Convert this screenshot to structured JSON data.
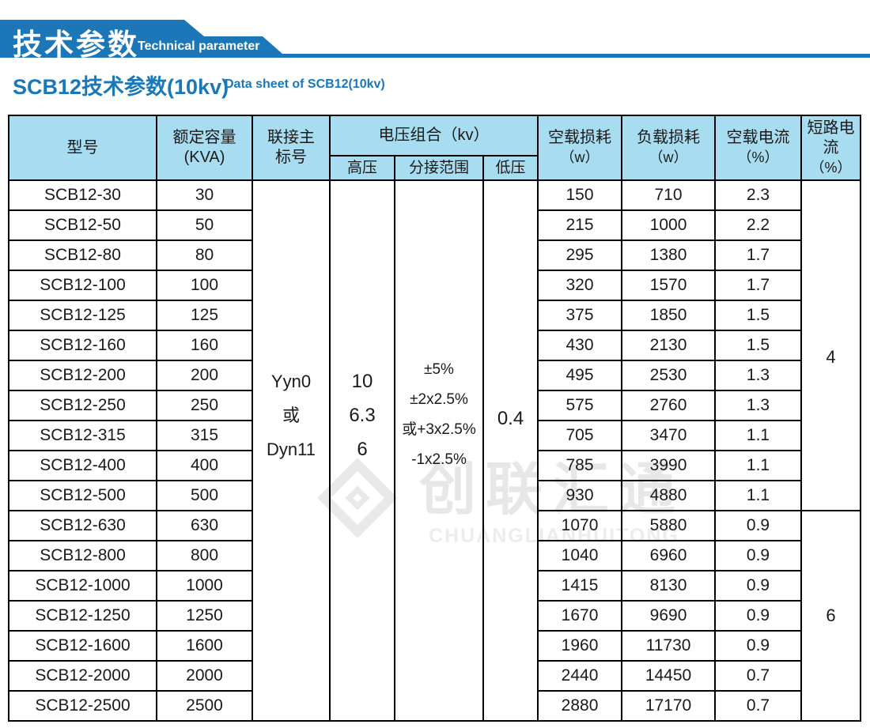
{
  "banner": {
    "title": "技术参数",
    "subtitle": "Technical parameter",
    "color": "#1b77b7"
  },
  "section_title": {
    "zh": "SCB12技术参数(10kv)",
    "en": "Data sheet of SCB12(10kv)",
    "color": "#1878ba"
  },
  "watermark": {
    "zh": "创联汇通",
    "en": "CHUANGLIANHUITONG",
    "color": "#e7e7e7"
  },
  "table": {
    "header": {
      "model": "型号",
      "capacity_l1": "额定容量",
      "capacity_l2": "(KVA)",
      "connection_l1": "联接主",
      "connection_l2": "标号",
      "voltage_group": "电压组合（kv）",
      "hv": "高压",
      "tap": "分接范围",
      "lv": "低压",
      "no_load_loss_l1": "空载损耗",
      "no_load_loss_l2": "（w）",
      "load_loss_l1": "负载损耗",
      "load_loss_l2": "（w）",
      "no_load_current_l1": "空载电流",
      "no_load_current_l2": "（%）",
      "short_circuit_l1": "短路电流",
      "short_circuit_l2": "（%）",
      "header_bg": "#a8dcf0"
    },
    "merged": {
      "connection_lines": [
        "Yyn0",
        "或",
        "Dyn11"
      ],
      "hv_lines": [
        "10",
        "6.3",
        "6"
      ],
      "tap_lines": [
        "±5%",
        "±2x2.5%",
        "或+3x2.5%",
        "-1x2.5%"
      ],
      "lv": "0.4",
      "short_circuit_a": "4",
      "short_circuit_a_rows": 11,
      "short_circuit_b": "6",
      "short_circuit_b_rows": 7
    },
    "rows": [
      {
        "model": "SCB12-30",
        "capacity": "30",
        "no_load_loss": "150",
        "load_loss": "710",
        "no_load_current": "2.3"
      },
      {
        "model": "SCB12-50",
        "capacity": "50",
        "no_load_loss": "215",
        "load_loss": "1000",
        "no_load_current": "2.2"
      },
      {
        "model": "SCB12-80",
        "capacity": "80",
        "no_load_loss": "295",
        "load_loss": "1380",
        "no_load_current": "1.7"
      },
      {
        "model": "SCB12-100",
        "capacity": "100",
        "no_load_loss": "320",
        "load_loss": "1570",
        "no_load_current": "1.7"
      },
      {
        "model": "SCB12-125",
        "capacity": "125",
        "no_load_loss": "375",
        "load_loss": "1850",
        "no_load_current": "1.5"
      },
      {
        "model": "SCB12-160",
        "capacity": "160",
        "no_load_loss": "430",
        "load_loss": "2130",
        "no_load_current": "1.5"
      },
      {
        "model": "SCB12-200",
        "capacity": "200",
        "no_load_loss": "495",
        "load_loss": "2530",
        "no_load_current": "1.3"
      },
      {
        "model": "SCB12-250",
        "capacity": "250",
        "no_load_loss": "575",
        "load_loss": "2760",
        "no_load_current": "1.3"
      },
      {
        "model": "SCB12-315",
        "capacity": "315",
        "no_load_loss": "705",
        "load_loss": "3470",
        "no_load_current": "1.1"
      },
      {
        "model": "SCB12-400",
        "capacity": "400",
        "no_load_loss": "785",
        "load_loss": "3990",
        "no_load_current": "1.1"
      },
      {
        "model": "SCB12-500",
        "capacity": "500",
        "no_load_loss": "930",
        "load_loss": "4880",
        "no_load_current": "1.1"
      },
      {
        "model": "SCB12-630",
        "capacity": "630",
        "no_load_loss": "1070",
        "load_loss": "5880",
        "no_load_current": "0.9"
      },
      {
        "model": "SCB12-800",
        "capacity": "800",
        "no_load_loss": "1040",
        "load_loss": "6960",
        "no_load_current": "0.9"
      },
      {
        "model": "SCB12-1000",
        "capacity": "1000",
        "no_load_loss": "1415",
        "load_loss": "8130",
        "no_load_current": "0.9"
      },
      {
        "model": "SCB12-1250",
        "capacity": "1250",
        "no_load_loss": "1670",
        "load_loss": "9690",
        "no_load_current": "0.9"
      },
      {
        "model": "SCB12-1600",
        "capacity": "1600",
        "no_load_loss": "1960",
        "load_loss": "11730",
        "no_load_current": "0.9"
      },
      {
        "model": "SCB12-2000",
        "capacity": "2000",
        "no_load_loss": "2440",
        "load_loss": "14450",
        "no_load_current": "0.7"
      },
      {
        "model": "SCB12-2500",
        "capacity": "2500",
        "no_load_loss": "2880",
        "load_loss": "17170",
        "no_load_current": "0.7"
      }
    ]
  }
}
